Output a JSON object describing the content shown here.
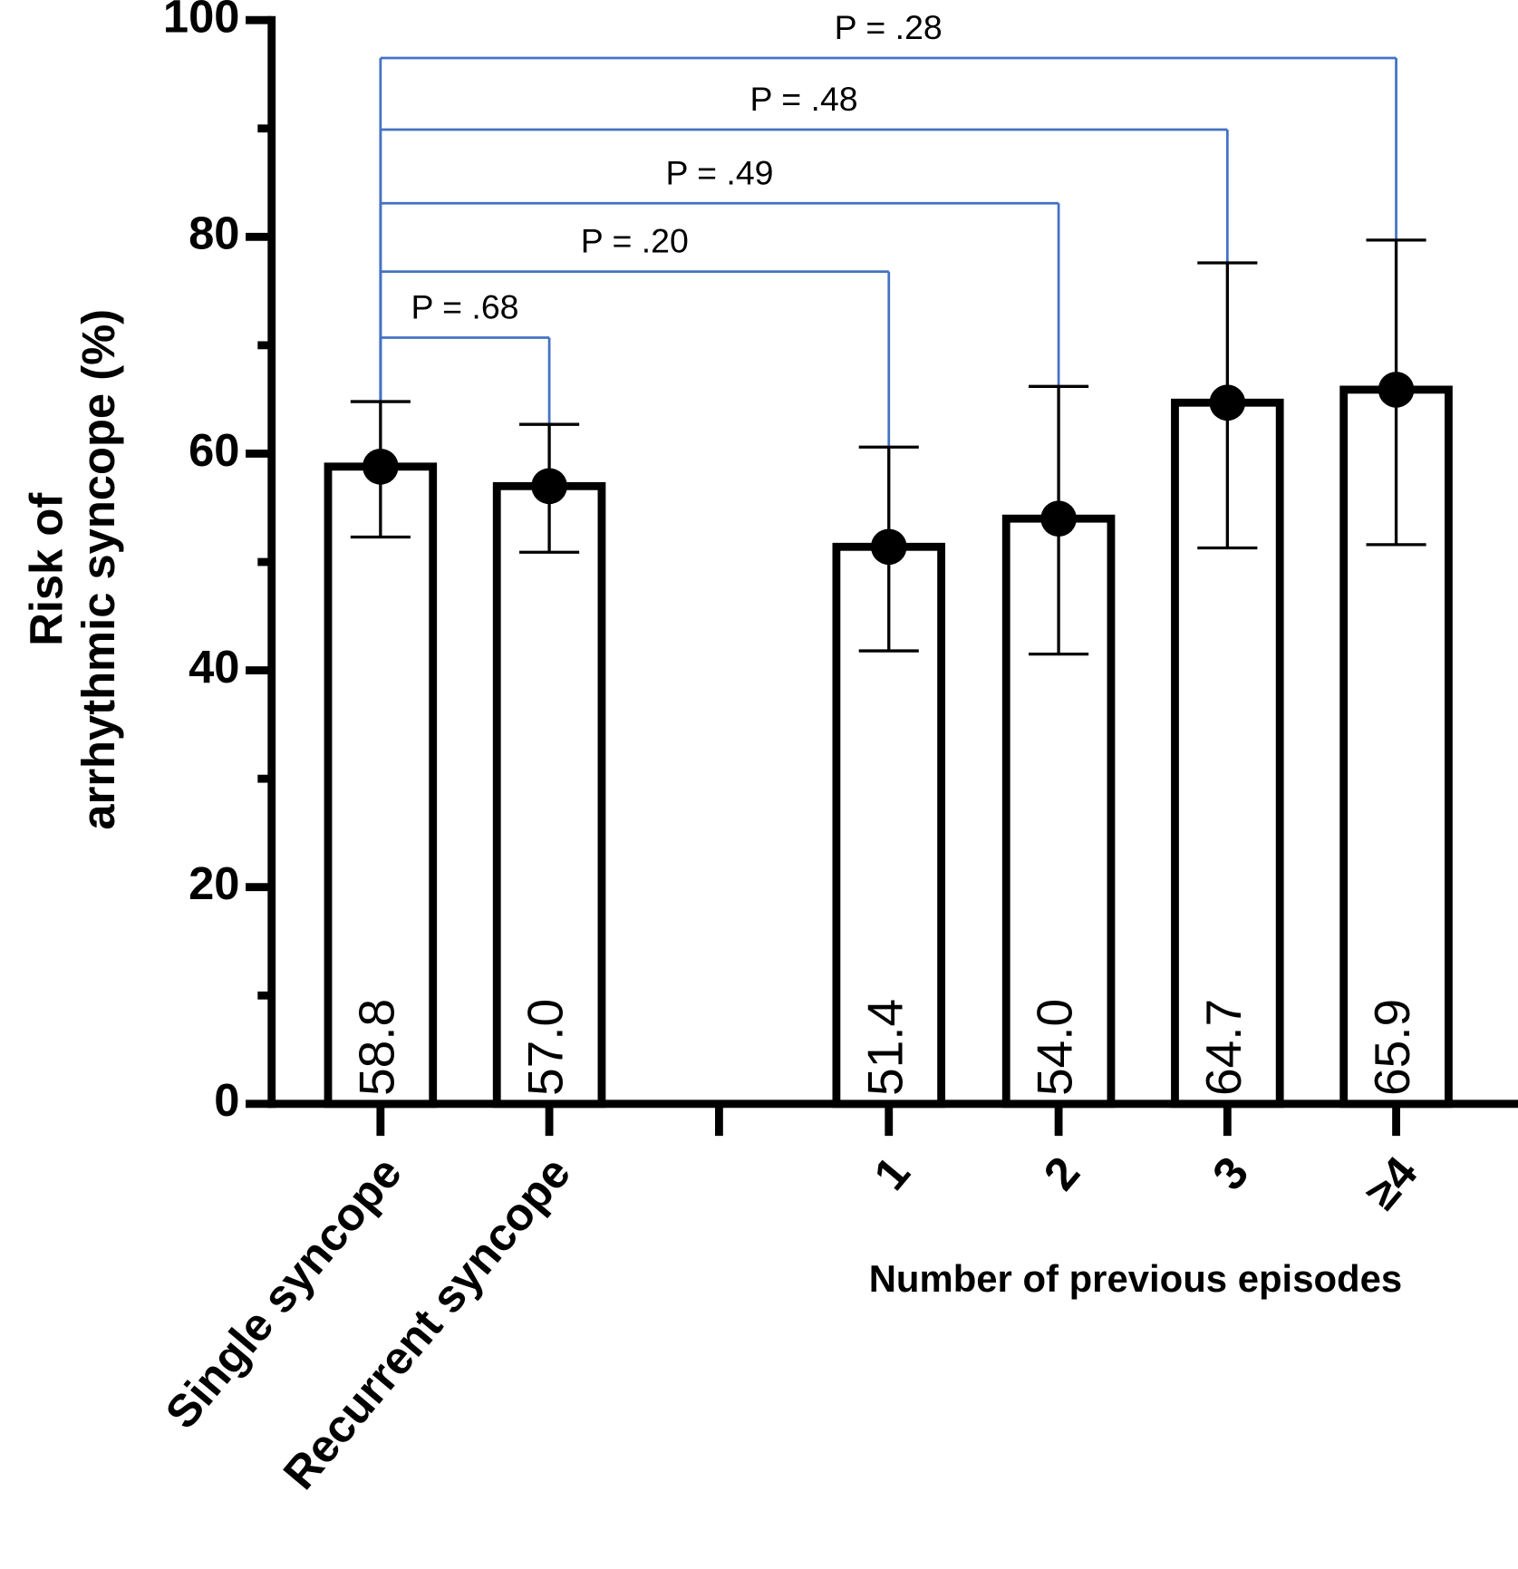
{
  "chart_data": {
    "type": "bar",
    "y_label_lines": [
      "Risk of",
      "arrhythmic syncope (%)"
    ],
    "x_label": "Number of previous episodes",
    "categories": [
      "Single syncope",
      "Recurrent syncope",
      null,
      "1",
      "2",
      "3",
      "≥4"
    ],
    "values": [
      58.8,
      57.0,
      null,
      51.4,
      54.0,
      64.7,
      65.9
    ],
    "value_labels": [
      "58.8",
      "57.0",
      null,
      "51.4",
      "54.0",
      "64.7",
      "65.9"
    ],
    "error_upper": [
      64.8,
      62.7,
      null,
      60.6,
      66.2,
      77.6,
      79.7
    ],
    "error_lower": [
      52.3,
      50.9,
      null,
      41.8,
      41.5,
      51.3,
      51.6
    ],
    "bar_color": "#ffffff",
    "edge_color": "#000000",
    "marker_color": "#000000",
    "bracket_color": "#4472c4",
    "ylim": [
      0,
      100
    ],
    "yticks": [
      0,
      20,
      40,
      60,
      80,
      100
    ],
    "yticks_minor": [
      10,
      30,
      50,
      70,
      90
    ],
    "comparisons": [
      {
        "text": "P = .68",
        "from": 0,
        "to": 1,
        "y": 70.7
      },
      {
        "text": "P = .20",
        "from": 0,
        "to": 3,
        "y": 76.8
      },
      {
        "text": "P = .49",
        "from": 0,
        "to": 4,
        "y": 83.1
      },
      {
        "text": "P = .48",
        "from": 0,
        "to": 5,
        "y": 89.9
      },
      {
        "text": "P = .28",
        "from": 0,
        "to": 6,
        "y": 96.5
      }
    ]
  }
}
